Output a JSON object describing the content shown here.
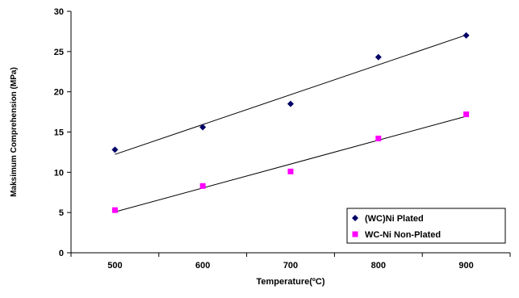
{
  "chart_data": {
    "type": "scatter",
    "title": "",
    "xlabel": "Temperature(ºC)",
    "ylabel": "Maksimum Comprehension (MPa)",
    "xlim": [
      450,
      950
    ],
    "ylim": [
      0,
      30
    ],
    "x_ticks": [
      500,
      600,
      700,
      800,
      900
    ],
    "y_ticks": [
      0,
      5,
      10,
      15,
      20,
      25,
      30
    ],
    "grid": false,
    "legend_position": "bottom-right",
    "trendlines": "linear",
    "series": [
      {
        "name": "(WC)Ni Plated",
        "marker": "diamond",
        "color": "#000066",
        "x": [
          500,
          600,
          700,
          800,
          900
        ],
        "y": [
          12.8,
          15.6,
          18.5,
          24.3,
          27.0
        ]
      },
      {
        "name": "WC-Ni Non-Plated",
        "marker": "square",
        "color": "#ff00ff",
        "x": [
          500,
          600,
          700,
          800,
          900
        ],
        "y": [
          5.3,
          8.3,
          10.1,
          14.2,
          17.2
        ]
      }
    ]
  }
}
